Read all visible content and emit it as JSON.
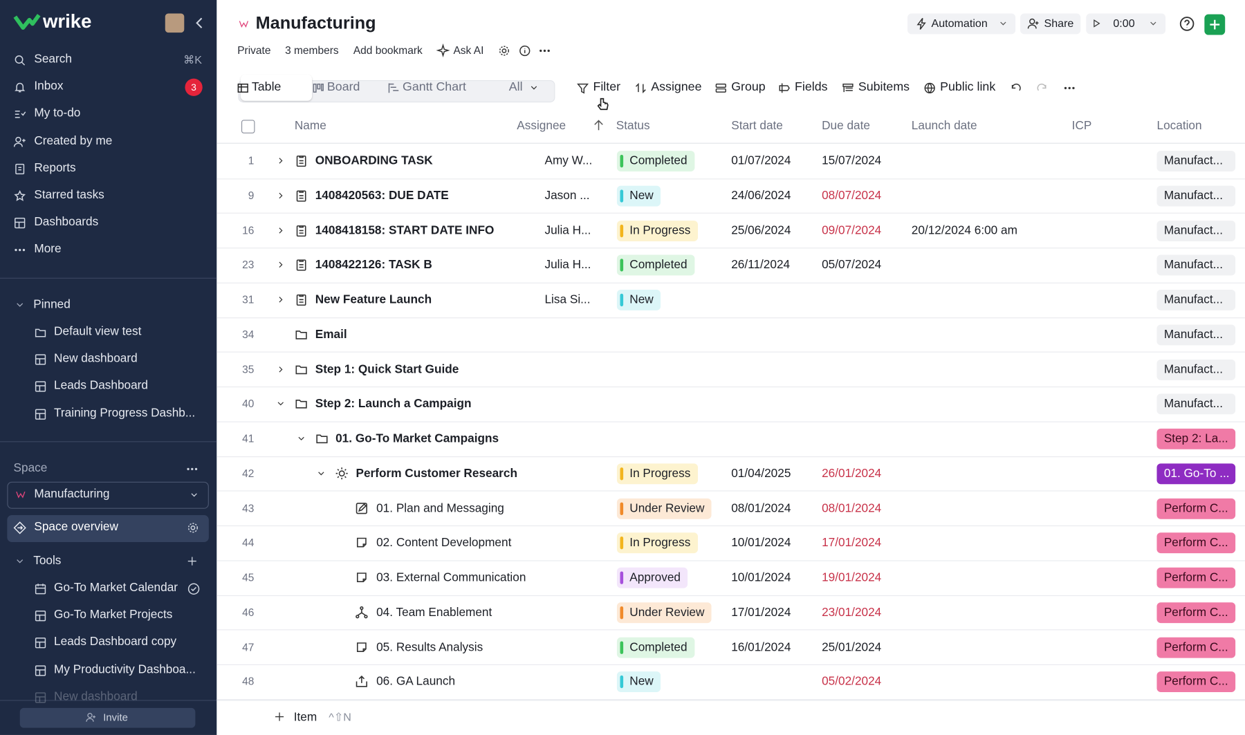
{
  "sidebar": {
    "brand": "wrike",
    "nav": [
      {
        "label": "Search",
        "shortcut": "⌘K"
      },
      {
        "label": "Inbox",
        "badge": 3
      },
      {
        "label": "My to-do"
      },
      {
        "label": "Created by me"
      },
      {
        "label": "Reports"
      },
      {
        "label": "Starred tasks"
      },
      {
        "label": "Dashboards"
      },
      {
        "label": "More"
      }
    ],
    "pinned": {
      "title": "Pinned",
      "items": [
        "Default view test",
        "New dashboard",
        "Leads Dashboard",
        "Training Progress Dashb..."
      ]
    },
    "space": {
      "title": "Space",
      "selected": "Manufacturing",
      "overview": "Space overview"
    },
    "tools": {
      "title": "Tools",
      "items": [
        "Go-To Market Calendar",
        "Go-To Market Projects",
        "Leads Dashboard copy",
        "My Productivity Dashboa...",
        "New dashboard"
      ]
    },
    "invite": "Invite"
  },
  "header": {
    "title": "Manufacturing",
    "meta": [
      "Private",
      "3 members",
      "Add bookmark",
      "Ask AI"
    ],
    "actions": [
      "Automation",
      "Share"
    ],
    "timer": "0:00"
  },
  "views": [
    "Table",
    "Board",
    "Gantt Chart",
    "All"
  ],
  "toolbar": [
    "Filter",
    "Assignee",
    "Group",
    "Fields",
    "Subitems",
    "Public link"
  ],
  "table": {
    "columns": [
      "Name",
      "Assignee",
      "Status",
      "Start date",
      "Due date",
      "Launch date",
      "ICP",
      "Location"
    ],
    "status_colors": {
      "Completed": [
        "#dff6e4",
        "#3cc35a"
      ],
      "New": [
        "#dcf6f8",
        "#35c9d6"
      ],
      "In Progress": [
        "#fdf3cf",
        "#f2b51d"
      ],
      "Under Review": [
        "#fde9d6",
        "#f08a2a"
      ],
      "Approved": [
        "#f3e6fb",
        "#a650dc"
      ]
    },
    "rows": [
      {
        "id": 1,
        "level": 0,
        "expand": "closed",
        "icon": "task",
        "name": "ONBOARDING TASK",
        "assignee": "Amy W...",
        "status": "Completed",
        "start": "01/07/2024",
        "due": "15/07/2024",
        "location": "Manufact...",
        "loc_color": "grey"
      },
      {
        "id": 9,
        "level": 0,
        "expand": "closed",
        "icon": "task",
        "name": "1408420563: DUE DATE",
        "assignee": "Jason ...",
        "status": "New",
        "start": "24/06/2024",
        "due": "08/07/2024",
        "overdue": true,
        "location": "Manufact...",
        "loc_color": "grey"
      },
      {
        "id": 16,
        "level": 0,
        "expand": "closed",
        "icon": "task",
        "name": "1408418158: START DATE INFO",
        "assignee": "Julia H...",
        "status": "In Progress",
        "start": "25/06/2024",
        "due": "09/07/2024",
        "overdue": true,
        "launch": "20/12/2024 6:00 am",
        "location": "Manufact...",
        "loc_color": "grey"
      },
      {
        "id": 23,
        "level": 0,
        "expand": "closed",
        "icon": "task",
        "name": "1408422126: TASK B",
        "assignee": "Julia H...",
        "status": "Completed",
        "start": "26/11/2024",
        "due": "05/07/2024",
        "location": "Manufact...",
        "loc_color": "grey"
      },
      {
        "id": 31,
        "level": 0,
        "expand": "closed",
        "icon": "task",
        "name": "New Feature Launch",
        "assignee": "Lisa Si...",
        "status": "New",
        "location": "Manufact...",
        "loc_color": "grey"
      },
      {
        "id": 34,
        "level": 0,
        "icon": "folder",
        "name": "Email",
        "location": "Manufact...",
        "loc_color": "grey"
      },
      {
        "id": 35,
        "level": 0,
        "expand": "closed",
        "icon": "folder",
        "name": "Step 1: Quick Start Guide",
        "location": "Manufact...",
        "loc_color": "grey"
      },
      {
        "id": 40,
        "level": 0,
        "expand": "open",
        "icon": "folder",
        "name": "Step 2: Launch a Campaign",
        "location": "Manufact...",
        "loc_color": "grey"
      },
      {
        "id": 41,
        "level": 1,
        "expand": "open",
        "icon": "folder",
        "name": "01. Go-To Market Campaigns",
        "location": "Step 2: La...",
        "loc_color": "pink"
      },
      {
        "id": 42,
        "level": 2,
        "expand": "open",
        "icon": "idea",
        "name": "Perform Customer Research",
        "status": "In Progress",
        "start": "01/04/2025",
        "due": "26/01/2024",
        "overdue": true,
        "location": "01. Go-To ...",
        "loc_color": "purple"
      },
      {
        "id": 43,
        "level": 3,
        "icon": "edit",
        "name": "01. Plan and Messaging",
        "status": "Under Review",
        "start": "08/01/2024",
        "due": "08/01/2024",
        "overdue": true,
        "location": "Perform C...",
        "loc_color": "pink"
      },
      {
        "id": 44,
        "level": 3,
        "icon": "doc",
        "name": "02. Content Development",
        "status": "In Progress",
        "start": "10/01/2024",
        "due": "17/01/2024",
        "overdue": true,
        "location": "Perform C...",
        "loc_color": "pink"
      },
      {
        "id": 45,
        "level": 3,
        "icon": "doc",
        "name": "03. External Communication",
        "status": "Approved",
        "start": "10/01/2024",
        "due": "19/01/2024",
        "overdue": true,
        "location": "Perform C...",
        "loc_color": "pink"
      },
      {
        "id": 46,
        "level": 3,
        "icon": "flow",
        "name": "04. Team Enablement",
        "status": "Under Review",
        "start": "17/01/2024",
        "due": "23/01/2024",
        "overdue": true,
        "location": "Perform C...",
        "loc_color": "pink"
      },
      {
        "id": 47,
        "level": 3,
        "icon": "doc",
        "name": "05. Results Analysis",
        "status": "Completed",
        "start": "16/01/2024",
        "due": "25/01/2024",
        "location": "Perform C...",
        "loc_color": "pink"
      },
      {
        "id": 48,
        "level": 3,
        "icon": "launch",
        "name": "06. GA Launch",
        "status": "New",
        "due": "05/02/2024",
        "overdue": true,
        "location": "Perform C...",
        "loc_color": "pink"
      }
    ]
  },
  "footer": {
    "add": "Item",
    "shortcut": "^⇧N"
  }
}
